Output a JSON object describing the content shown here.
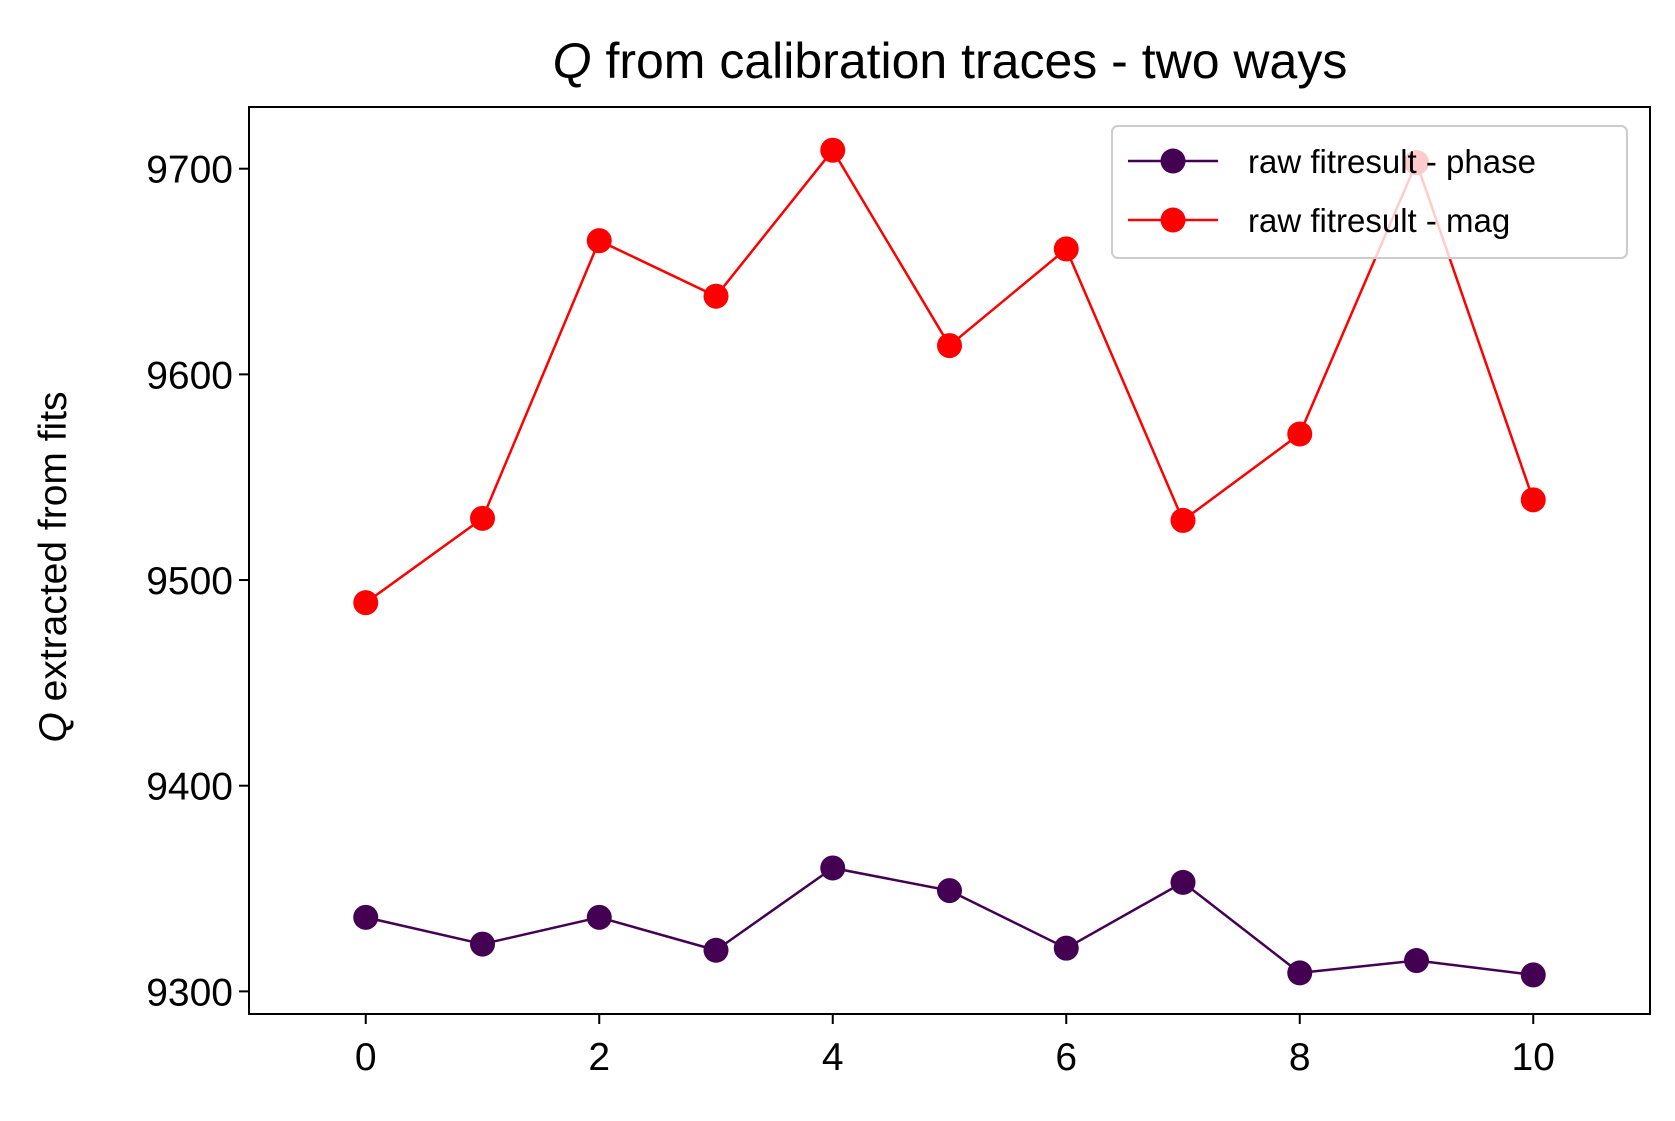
{
  "chart_data": {
    "type": "line",
    "title": {
      "symbol": "Q",
      "text": " from calibration traces - two ways"
    },
    "xlabel": "",
    "ylabel": {
      "symbol": "Q",
      "text": " extracted from fits"
    },
    "x": [
      0,
      1,
      2,
      3,
      4,
      5,
      6,
      7,
      8,
      9,
      10
    ],
    "xlim": [
      -1,
      11
    ],
    "ylim": [
      9289,
      9730
    ],
    "xticks": [
      0,
      2,
      4,
      6,
      8,
      10
    ],
    "yticks": [
      9300,
      9400,
      9500,
      9600,
      9700
    ],
    "grid": false,
    "legend_position": "top-right",
    "series": [
      {
        "name": "raw fitresult - phase",
        "color": "#440154",
        "marker": "circle",
        "values": [
          9336,
          9323,
          9336,
          9320,
          9360,
          9349,
          9321,
          9353,
          9309,
          9315,
          9308
        ]
      },
      {
        "name": "raw fitresult - mag",
        "color": "#ff0000",
        "marker": "circle",
        "values": [
          9489,
          9530,
          9665,
          9638,
          9709,
          9614,
          9661,
          9529,
          9571,
          9703,
          9539
        ]
      }
    ]
  }
}
